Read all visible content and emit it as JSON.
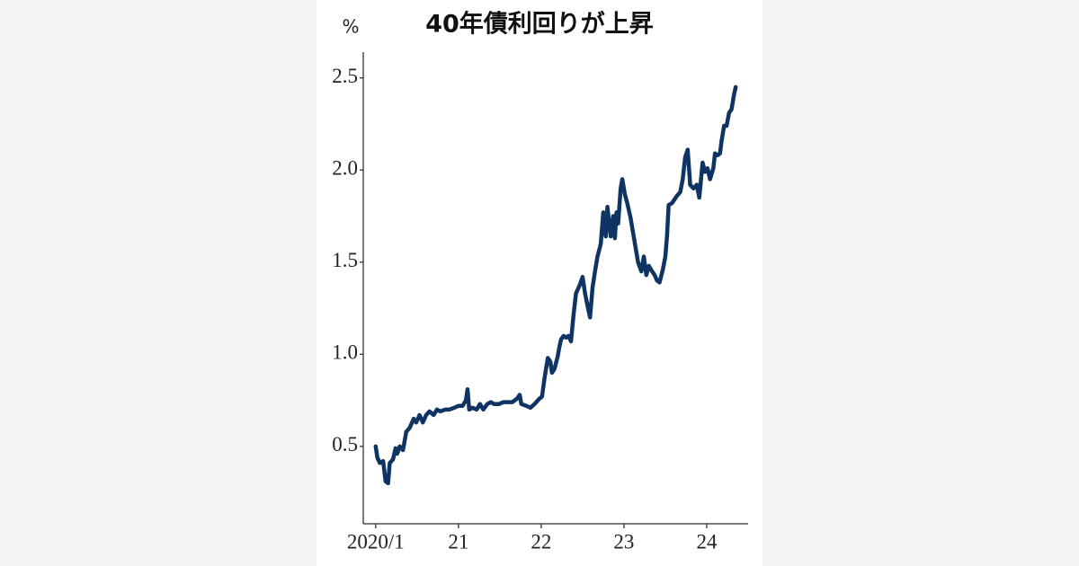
{
  "chart_data": {
    "type": "line",
    "title": "40年債利回りが上昇",
    "y_unit": "%",
    "x": [
      2020.0,
      2020.02,
      2020.05,
      2020.09,
      2020.12,
      2020.15,
      2020.17,
      2020.21,
      2020.24,
      2020.26,
      2020.29,
      2020.33,
      2020.37,
      2020.41,
      2020.46,
      2020.49,
      2020.53,
      2020.57,
      2020.61,
      2020.65,
      2020.7,
      2020.74,
      2020.78,
      2020.84,
      2020.89,
      2020.95,
      2021.0,
      2021.05,
      2021.09,
      2021.11,
      2021.13,
      2021.17,
      2021.22,
      2021.26,
      2021.3,
      2021.35,
      2021.39,
      2021.43,
      2021.49,
      2021.54,
      2021.6,
      2021.65,
      2021.71,
      2021.74,
      2021.76,
      2021.82,
      2021.87,
      2021.92,
      2021.98,
      2022.01,
      2022.04,
      2022.08,
      2022.11,
      2022.13,
      2022.16,
      2022.2,
      2022.22,
      2022.24,
      2022.27,
      2022.3,
      2022.33,
      2022.36,
      2022.39,
      2022.42,
      2022.47,
      2022.5,
      2022.53,
      2022.57,
      2022.59,
      2022.62,
      2022.65,
      2022.68,
      2022.72,
      2022.75,
      2022.78,
      2022.8,
      2022.84,
      2022.87,
      2022.89,
      2022.91,
      2022.93,
      2022.96,
      2022.98,
      2023.01,
      2023.04,
      2023.08,
      2023.11,
      2023.14,
      2023.17,
      2023.21,
      2023.24,
      2023.27,
      2023.3,
      2023.34,
      2023.37,
      2023.4,
      2023.43,
      2023.47,
      2023.5,
      2023.52,
      2023.54,
      2023.58,
      2023.61,
      2023.64,
      2023.68,
      2023.71,
      2023.74,
      2023.77,
      2023.8,
      2023.84,
      2023.88,
      2023.91,
      2023.95,
      2023.98,
      2024.01,
      2024.04,
      2024.08,
      2024.1,
      2024.13,
      2024.16,
      2024.18,
      2024.21,
      2024.24,
      2024.27,
      2024.3,
      2024.33,
      2024.35
    ],
    "series": [
      {
        "color": "#0f3464",
        "values": [
          0.5,
          0.44,
          0.41,
          0.42,
          0.31,
          0.3,
          0.41,
          0.43,
          0.49,
          0.46,
          0.5,
          0.48,
          0.58,
          0.6,
          0.65,
          0.63,
          0.67,
          0.63,
          0.67,
          0.69,
          0.67,
          0.7,
          0.69,
          0.7,
          0.7,
          0.71,
          0.72,
          0.72,
          0.75,
          0.81,
          0.7,
          0.71,
          0.7,
          0.73,
          0.7,
          0.73,
          0.74,
          0.73,
          0.73,
          0.74,
          0.74,
          0.74,
          0.76,
          0.78,
          0.73,
          0.72,
          0.71,
          0.73,
          0.76,
          0.77,
          0.87,
          0.98,
          0.96,
          0.9,
          0.92,
          0.99,
          1.04,
          1.08,
          1.1,
          1.09,
          1.1,
          1.07,
          1.21,
          1.33,
          1.38,
          1.42,
          1.33,
          1.24,
          1.2,
          1.36,
          1.45,
          1.53,
          1.6,
          1.77,
          1.64,
          1.8,
          1.64,
          1.75,
          1.63,
          1.77,
          1.71,
          1.9,
          1.95,
          1.87,
          1.82,
          1.74,
          1.66,
          1.58,
          1.5,
          1.45,
          1.53,
          1.43,
          1.48,
          1.45,
          1.43,
          1.4,
          1.39,
          1.46,
          1.53,
          1.64,
          1.81,
          1.82,
          1.84,
          1.86,
          1.88,
          1.95,
          2.07,
          2.11,
          1.92,
          1.9,
          1.92,
          1.85,
          2.04,
          1.99,
          2.01,
          1.95,
          2.01,
          2.09,
          2.08,
          2.09,
          2.16,
          2.24,
          2.24,
          2.31,
          2.33,
          2.41,
          2.45
        ]
      }
    ],
    "xlim": [
      2019.85,
      2024.5
    ],
    "xticks": [
      {
        "value": 2020,
        "label": "2020/1"
      },
      {
        "value": 2021,
        "label": "21"
      },
      {
        "value": 2022,
        "label": "22"
      },
      {
        "value": 2023,
        "label": "23"
      },
      {
        "value": 2024,
        "label": "24"
      }
    ],
    "ylim": [
      0.08,
      2.64
    ],
    "yticks": [
      {
        "value": 0.5,
        "label": "0.5"
      },
      {
        "value": 1.0,
        "label": "1.0"
      },
      {
        "value": 1.5,
        "label": "1.5"
      },
      {
        "value": 2.0,
        "label": "2.0"
      },
      {
        "value": 2.5,
        "label": "2.5"
      }
    ],
    "grid": false
  }
}
